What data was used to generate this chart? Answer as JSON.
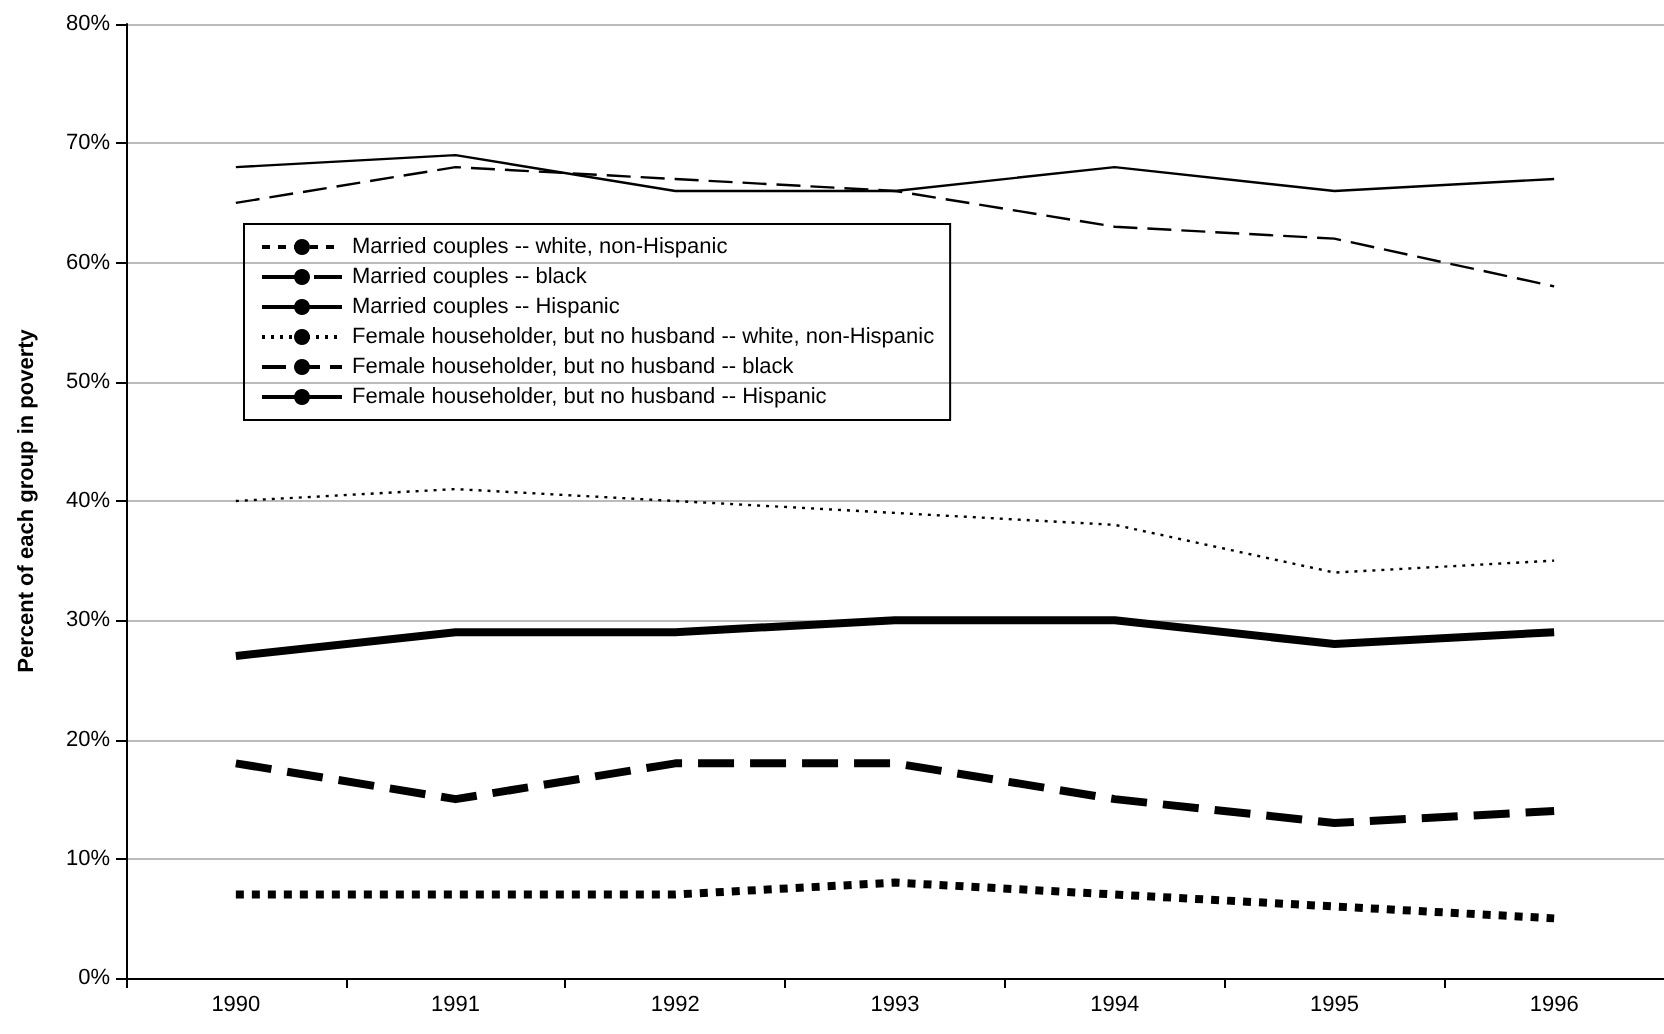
{
  "chart_data": {
    "type": "line",
    "ylabel": "Percent of each group in poverty",
    "categories": [
      "1990",
      "1991",
      "1992",
      "1993",
      "1994",
      "1995",
      "1996"
    ],
    "series": [
      {
        "name": "Married couples -- white, non-Hispanic",
        "color": "#000000",
        "line_style": "dotted",
        "values": [
          7,
          7,
          7,
          8,
          7,
          6,
          5
        ]
      },
      {
        "name": "Married couples -- black",
        "color": "#000000",
        "line_style": "dashed",
        "values": [
          18,
          15,
          18,
          18,
          15,
          13,
          14
        ]
      },
      {
        "name": "Married couples -- Hispanic",
        "color": "#000000",
        "line_style": "solid",
        "values": [
          27,
          29,
          29,
          30,
          30,
          28,
          29
        ]
      },
      {
        "name": "Female householder, but no husband -- white, non-Hispanic",
        "color": "#000000",
        "line_style": "dotted",
        "values": [
          40,
          41,
          40,
          39,
          38,
          34,
          35
        ]
      },
      {
        "name": "Female householder, but no husband -- black",
        "color": "#000000",
        "line_style": "dashed",
        "values": [
          65,
          68,
          67,
          66,
          63,
          62,
          58
        ]
      },
      {
        "name": "Female householder, but no husband -- Hispanic",
        "color": "#000000",
        "line_style": "solid",
        "values": [
          68,
          69,
          66,
          66,
          68,
          66,
          67
        ]
      }
    ],
    "ylim": [
      0,
      80
    ],
    "yticks": [
      {
        "value": 0,
        "label": "0%"
      },
      {
        "value": 10,
        "label": "10%"
      },
      {
        "value": 20,
        "label": "20%"
      },
      {
        "value": 30,
        "label": "30%"
      },
      {
        "value": 40,
        "label": "40%"
      },
      {
        "value": 50,
        "label": "50%"
      },
      {
        "value": 60,
        "label": "60%"
      },
      {
        "value": 70,
        "label": "70%"
      },
      {
        "value": 80,
        "label": "80%"
      }
    ],
    "grid": "y",
    "legend": "top left",
    "marker": "none"
  }
}
